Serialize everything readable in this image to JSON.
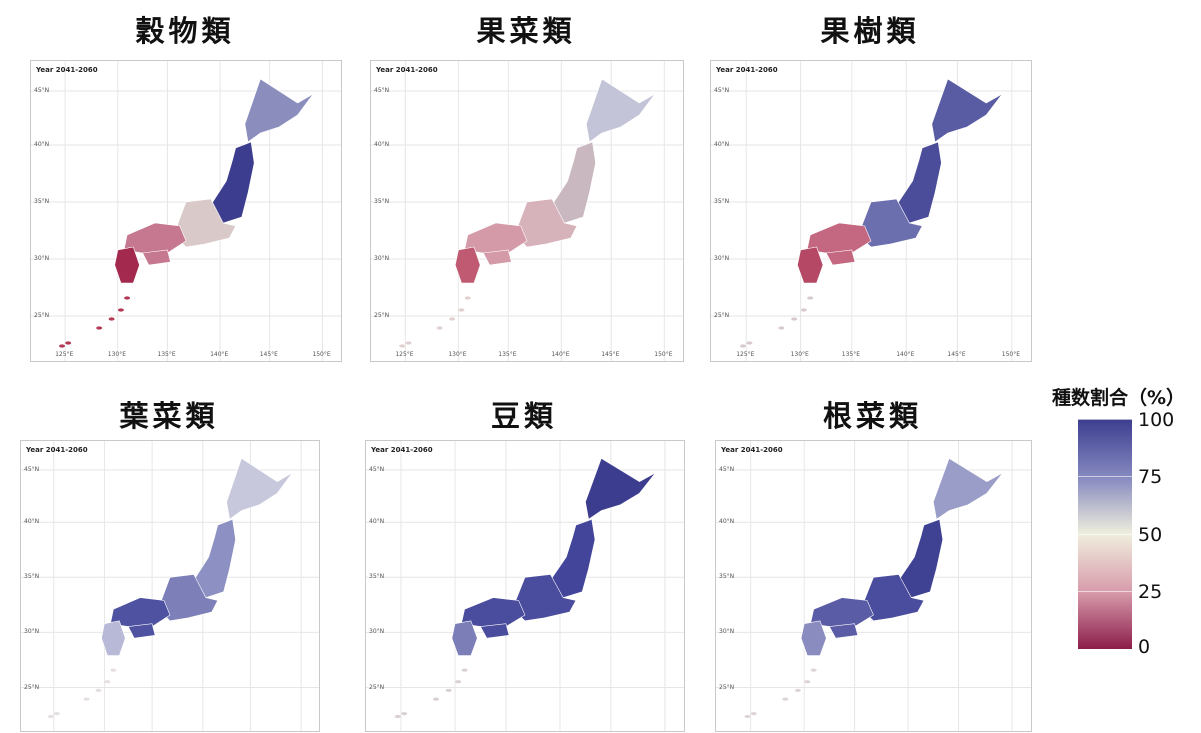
{
  "panels": [
    {
      "title": "穀物類",
      "period": "Year 2041-2060",
      "colors": {
        "hokkaido": "#8b8dbd",
        "north": "#3d3d8f",
        "central": "#d9c9c9",
        "west": "#c5788f",
        "kyushu": "#a3294f",
        "islands": "#b23a55"
      }
    },
    {
      "title": "果菜類",
      "period": "Year 2041-2060",
      "colors": {
        "hokkaido": "#c4c4d8",
        "north": "#c9b8c0",
        "central": "#d6b2ba",
        "west": "#d49aa8",
        "kyushu": "#c05a72",
        "islands": "#e0d0d0"
      }
    },
    {
      "title": "果樹類",
      "period": "Year 2041-2060",
      "colors": {
        "hokkaido": "#5a5ca3",
        "north": "#4b4d9a",
        "central": "#6c6fae",
        "west": "#c46882",
        "kyushu": "#b54865",
        "islands": "#d7c9cc"
      }
    },
    {
      "title": "葉菜類",
      "period": "Year 2041-2060",
      "colors": {
        "hokkaido": "#c8c8dc",
        "north": "#8d90c2",
        "central": "#7d80b8",
        "west": "#4f52a0",
        "kyushu": "#b7b9d6",
        "islands": "#e5dfe0"
      }
    },
    {
      "title": "豆類",
      "period": "Year 2041-2060",
      "colors": {
        "hokkaido": "#3d3d8f",
        "north": "#43459a",
        "central": "#4a4c9e",
        "west": "#4a4c9e",
        "kyushu": "#7b7eb7",
        "islands": "#d8d0d5"
      }
    },
    {
      "title": "根菜類",
      "period": "Year 2041-2060",
      "colors": {
        "hokkaido": "#9b9dc9",
        "north": "#3f4193",
        "central": "#4a4c9e",
        "west": "#5a5ca6",
        "kyushu": "#8a8cc0",
        "islands": "#ddd5d8"
      }
    }
  ],
  "axes": {
    "lat_ticks": [
      "45°N",
      "40°N",
      "35°N",
      "30°N",
      "25°N"
    ],
    "lon_ticks": [
      "125°E",
      "130°E",
      "135°E",
      "140°E",
      "145°E",
      "150°E"
    ]
  },
  "legend": {
    "title": "種数割合（%）",
    "labels": [
      "100",
      "75",
      "50",
      "25",
      "0"
    ],
    "colors": [
      "#3d3d8f",
      "#8488bf",
      "#efeedd",
      "#d89cac",
      "#8c1d4a"
    ]
  }
}
